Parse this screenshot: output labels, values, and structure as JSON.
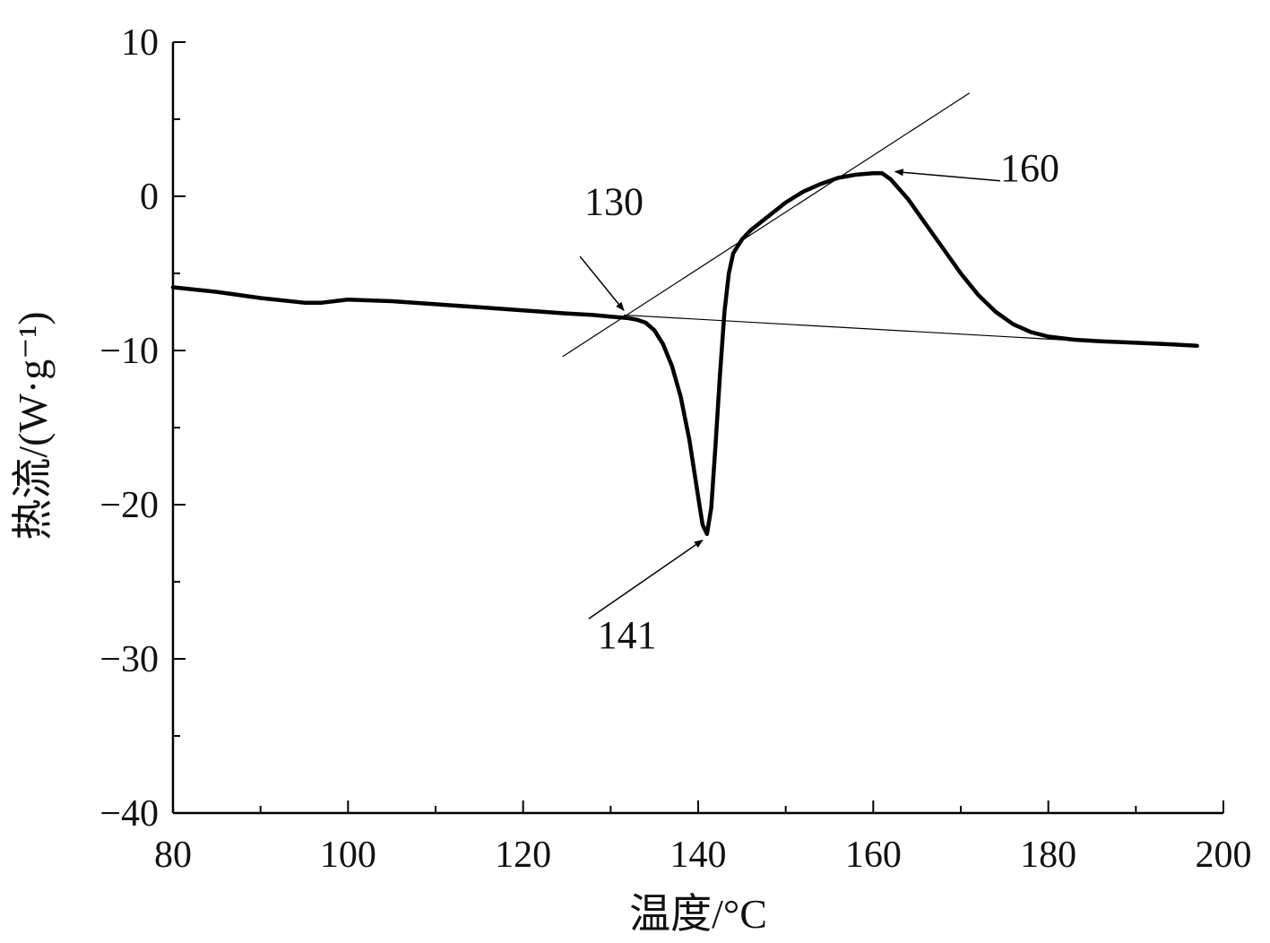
{
  "chart_data": {
    "type": "line",
    "xlabel": "温度/°C",
    "ylabel": "热流/(W·g⁻¹)",
    "xlim": [
      80,
      200
    ],
    "ylim": [
      -40,
      10
    ],
    "x_ticks": [
      80,
      100,
      120,
      140,
      160,
      180,
      200
    ],
    "x_tick_labels": [
      "80",
      "100",
      "120",
      "140",
      "160",
      "180",
      "200"
    ],
    "y_ticks": [
      10,
      0,
      -10,
      -20,
      -30,
      -40
    ],
    "y_tick_labels": [
      "10",
      "0",
      "−10",
      "−20",
      "−30",
      "−40"
    ],
    "grid": false,
    "legend": "none",
    "series": [
      {
        "x": [
          80,
          85,
          90,
          95,
          97,
          100,
          105,
          110,
          115,
          120,
          125,
          128,
          130,
          132,
          133,
          134,
          135,
          136,
          137,
          138,
          139,
          140,
          140.5,
          141,
          141.5,
          142,
          142.5,
          143,
          143.5,
          144,
          145,
          146,
          148,
          150,
          152,
          154,
          156,
          158,
          160,
          161,
          162,
          164,
          166,
          168,
          170,
          172,
          174,
          176,
          178,
          180,
          183,
          186,
          190,
          194,
          197
        ],
        "y": [
          -5.9,
          -6.2,
          -6.6,
          -6.9,
          -6.9,
          -6.7,
          -6.8,
          -7.0,
          -7.2,
          -7.4,
          -7.6,
          -7.7,
          -7.8,
          -7.9,
          -8.0,
          -8.2,
          -8.7,
          -9.6,
          -11.0,
          -13.0,
          -15.8,
          -19.5,
          -21.3,
          -21.9,
          -20.2,
          -16.0,
          -11.5,
          -7.5,
          -5.0,
          -3.7,
          -2.8,
          -2.2,
          -1.3,
          -0.4,
          0.3,
          0.8,
          1.2,
          1.4,
          1.5,
          1.5,
          1.1,
          -0.2,
          -1.8,
          -3.4,
          -5.0,
          -6.4,
          -7.5,
          -8.3,
          -8.8,
          -9.1,
          -9.3,
          -9.4,
          -9.5,
          -9.6,
          -9.7
        ],
        "color": "#000000"
      }
    ],
    "tangent_lines": [
      {
        "x": [
          124.5,
          171
        ],
        "y": [
          -10.4,
          6.7
        ]
      },
      {
        "x": [
          131.5,
          187.5
        ],
        "y": [
          -7.7,
          -9.5
        ]
      }
    ],
    "annotations": [
      {
        "text": "130",
        "label_x": 127,
        "label_y": -1.2,
        "arrow_from": [
          126.5,
          -3.9
        ],
        "arrow_to": [
          131.5,
          -7.4
        ]
      },
      {
        "text": "160",
        "label_x": 174.5,
        "label_y": 1.0,
        "arrow_from": [
          174.5,
          1.0
        ],
        "arrow_to": [
          162.5,
          1.6
        ]
      },
      {
        "text": "141",
        "label_x": 128.5,
        "label_y": -29.3,
        "arrow_from": [
          127.5,
          -27.4
        ],
        "arrow_to": [
          140.5,
          -22.3
        ]
      }
    ]
  }
}
